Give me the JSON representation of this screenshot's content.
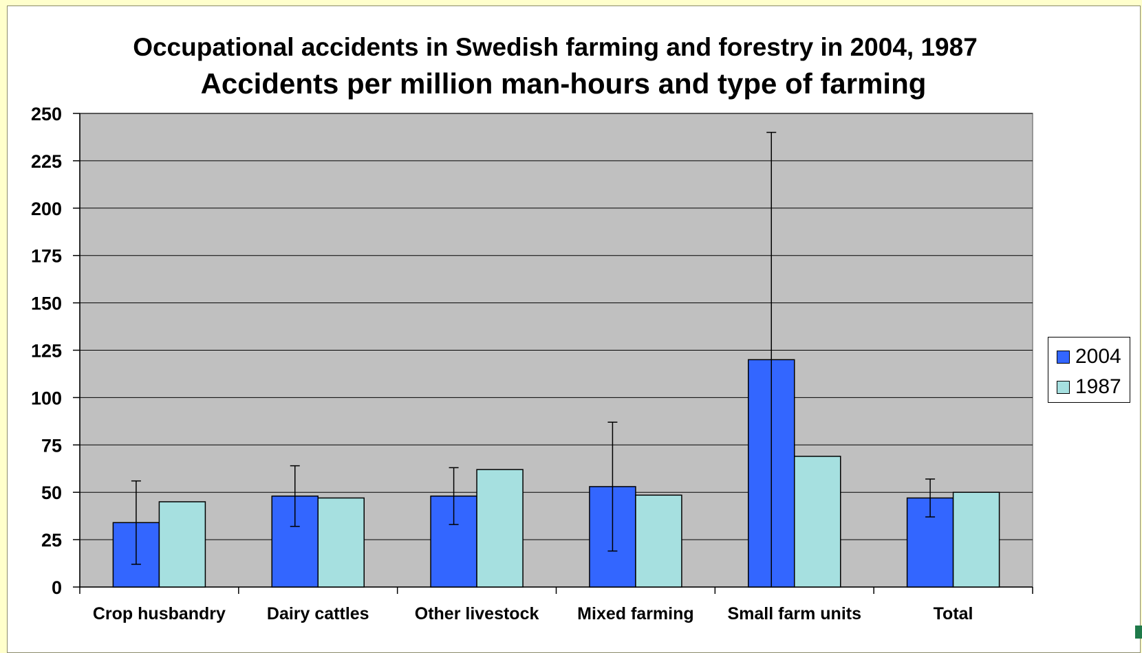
{
  "chart_data": {
    "type": "bar",
    "title": "Occupational accidents in Swedish farming and forestry in 2004, 1987",
    "subtitle": "Accidents per million man-hours and type of farming",
    "xlabel": "",
    "ylabel": "",
    "ylim": [
      0,
      250
    ],
    "yticks": [
      0,
      25,
      50,
      75,
      100,
      125,
      150,
      175,
      200,
      225,
      250
    ],
    "grid": true,
    "legend_position": "right",
    "categories": [
      "Crop husbandry",
      "Dairy cattles",
      "Other livestock",
      "Mixed farming",
      "Small farm units",
      "Total"
    ],
    "series": [
      {
        "name": "2004",
        "color": "#3366ff",
        "values": [
          34,
          48,
          48,
          53,
          120,
          47
        ],
        "error_low": [
          12,
          32,
          33,
          19,
          0,
          37
        ],
        "error_high": [
          56,
          64,
          63,
          87,
          240,
          57
        ]
      },
      {
        "name": "1987",
        "color": "#a6e0e0",
        "values": [
          45,
          47,
          62,
          48.5,
          69,
          50
        ]
      }
    ],
    "plot_background": "#c0c0c0"
  }
}
